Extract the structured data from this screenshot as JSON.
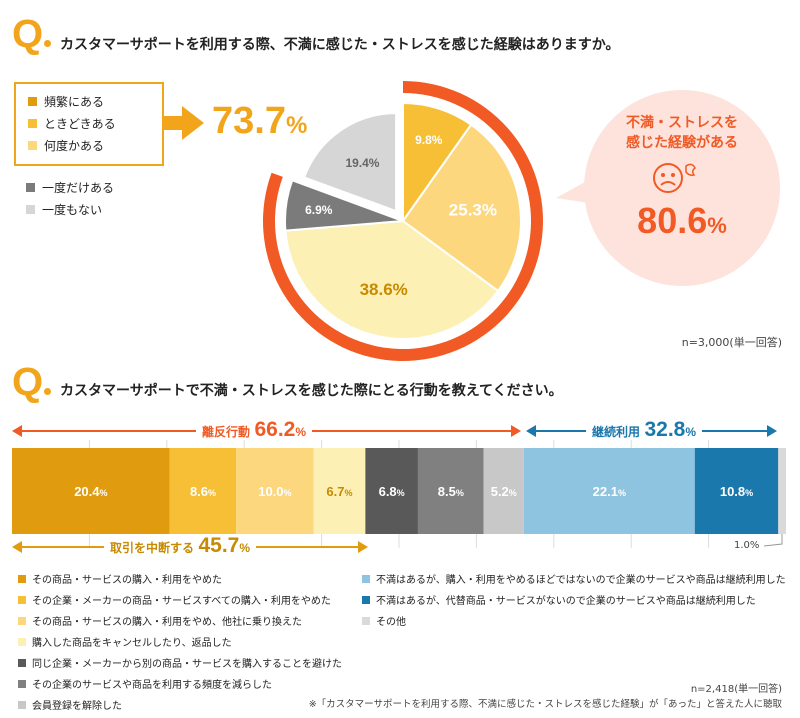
{
  "q1": {
    "mark": "Q",
    "title": "カスタマーサポートを利用する際、不満に感じた・ストレスを感じた経験はありますか。",
    "legend_group": [
      {
        "label": "頻繁にある",
        "color": "#e09b0e"
      },
      {
        "label": "ときどきある",
        "color": "#f7bf36"
      },
      {
        "label": "何度かある",
        "color": "#fbd97a"
      }
    ],
    "legend_other": [
      {
        "label": "一度だけある",
        "color": "#7b7b7b"
      },
      {
        "label": "一度もない",
        "color": "#d6d6d6"
      }
    ],
    "group_total_value": "73.7",
    "group_total_unit": "%",
    "callout_line1": "不満・ストレスを",
    "callout_line2": "感じた経験がある",
    "callout_value": "80.6",
    "callout_unit": "%",
    "sample_note": "n=3,000(単一回答)",
    "ring_color": "#f15a24"
  },
  "q2": {
    "mark": "Q",
    "title": "カスタマーサポートで不満・ストレスを感じた際にとる行動を教えてください。",
    "leave_label": "離反行動",
    "leave_value": "66.2",
    "continue_label": "継続利用",
    "continue_value": "32.8",
    "suspend_label": "取引を中断する",
    "suspend_value": "45.7",
    "unit": "%",
    "other_small_label": "1.0%",
    "sample_note": "n=2,418(単一回答)",
    "footnote": "※「カスタマーサポートを利用する際、不満に感じた・ストレスを感じた経験」が「あった」と答えた人に聴取",
    "legend": [
      {
        "label": "その商品・サービスの購入・利用をやめた",
        "color": "#e09b0e"
      },
      {
        "label": "その企業・メーカーの商品・サービスすべての購入・利用をやめた",
        "color": "#f7bf36"
      },
      {
        "label": "その商品・サービスの購入・利用をやめ、他社に乗り換えた",
        "color": "#fcd77e"
      },
      {
        "label": "購入した商品をキャンセルしたり、返品した",
        "color": "#fdf0b4"
      },
      {
        "label": "同じ企業・メーカーから別の商品・サービスを購入することを避けた",
        "color": "#595959"
      },
      {
        "label": "その企業のサービスや商品を利用する頻度を減らした",
        "color": "#808080"
      },
      {
        "label": "会員登録を解除した",
        "color": "#c8c8c8"
      },
      {
        "label": "不満はあるが、購入・利用をやめるほどではないので企業のサービスや商品は継続利用した",
        "color": "#8ec4e0"
      },
      {
        "label": "不満はあるが、代替商品・サービスがないので企業のサービスや商品は継続利用した",
        "color": "#1a78ac"
      },
      {
        "label": "その他",
        "color": "#dadada"
      }
    ]
  },
  "chart_data": [
    {
      "type": "pie",
      "title": "カスタマーサポートを利用する際、不満に感じた・ストレスを感じた経験はありますか。",
      "categories": [
        "頻繁にある",
        "ときどきある",
        "何度かある",
        "一度だけある",
        "一度もない"
      ],
      "values": [
        9.8,
        25.3,
        38.6,
        6.9,
        19.4
      ],
      "labels": [
        "9.8%",
        "25.3%",
        "38.6%",
        "6.9%",
        "19.4%"
      ],
      "colors": [
        "#f7bf36",
        "#fcd77e",
        "#fdf0b4",
        "#7b7b7b",
        "#d6d6d6"
      ],
      "exploded": [
        "一度もない"
      ]
    },
    {
      "type": "bar",
      "orientation": "horizontal-stacked-100",
      "title": "カスタマーサポートで不満・ストレスを感じた際にとる行動を教えてください。",
      "categories": [
        "その商品・サービスの購入・利用をやめた",
        "その企業・メーカーの商品・サービスすべての購入・利用をやめた",
        "その商品・サービスの購入・利用をやめ、他社に乗り換えた",
        "購入した商品をキャンセルしたり、返品した",
        "同じ企業・メーカーから別の商品・サービスを購入することを避けた",
        "その企業のサービスや商品を利用する頻度を減らした",
        "会員登録を解除した",
        "不満はあるが、購入・利用をやめるほどではないので企業のサービスや商品は継続利用した",
        "不満はあるが、代替商品・サービスがないので企業のサービスや商品は継続利用した",
        "その他"
      ],
      "values": [
        20.4,
        8.6,
        10.0,
        6.7,
        6.8,
        8.5,
        5.2,
        22.1,
        10.8,
        1.0
      ],
      "labels": [
        "20.4",
        "8.6",
        "10.0",
        "6.7",
        "6.8",
        "8.5",
        "5.2",
        "22.1",
        "10.8",
        ""
      ],
      "colors": [
        "#e09b0e",
        "#f7bf36",
        "#fcd77e",
        "#fdf0b4",
        "#595959",
        "#808080",
        "#c8c8c8",
        "#8ec4e0",
        "#1a78ac",
        "#dadada"
      ],
      "label_colors": [
        "#ffffff",
        "#ffffff",
        "#ffffff",
        "#c78a00",
        "#ffffff",
        "#ffffff",
        "#ffffff",
        "#ffffff",
        "#ffffff",
        "#ffffff"
      ]
    }
  ]
}
